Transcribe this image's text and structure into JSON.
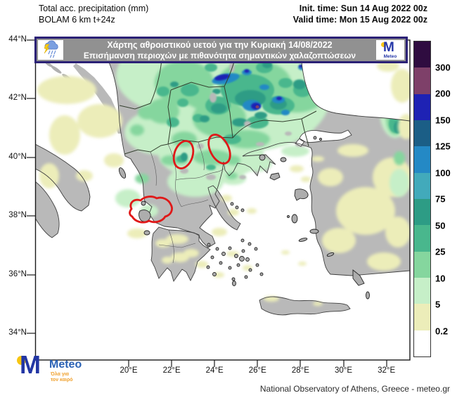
{
  "header": {
    "product_line1": "Total acc. precipitation (mm)",
    "product_line2": "BOLAM 6 km t+24z",
    "init_time": "Init. time: Sun 14 Aug 2022 00z",
    "valid_time": "Valid time: Mon 15 Aug 2022 00z"
  },
  "banner": {
    "title": "Χάρτης αθροιστικού υετού για την Κυριακή 14/08/2022",
    "subtitle": "Επισήμανση περιοχών με πιθανότητα σημαντικών χαλαζοπτώσεων",
    "bg_color": "#919191",
    "border_color": "#2b2176",
    "logo_text": "Meteo"
  },
  "axes": {
    "lat_labels": [
      "44°N",
      "42°N",
      "40°N",
      "38°N",
      "36°N",
      "34°N"
    ],
    "lon_labels": [
      "20°E",
      "22°E",
      "24°E",
      "26°E",
      "28°E",
      "30°E",
      "32°E"
    ]
  },
  "colorbar": {
    "unit": "mm",
    "labels_top_to_bottom": [
      "300",
      "200",
      "150",
      "125",
      "100",
      "75",
      "50",
      "25",
      "10",
      "5",
      "0.2"
    ],
    "colors_top_to_bottom": [
      "#2f0c40",
      "#7e4069",
      "#1e22b4",
      "#1b5e86",
      "#2489c5",
      "#42aabb",
      "#2d9c85",
      "#49b78d",
      "#85d69e",
      "#c6efc8",
      "#ecedb9",
      "#ffffff"
    ]
  },
  "map_colors": {
    "land": "#b9b9b9",
    "sea": "#ffffff",
    "highlight": "#e01818"
  },
  "footer": {
    "logo_text": "Meteo",
    "logo_tagline_line1": "Όλα για",
    "logo_tagline_line2": "τον καιρό",
    "attribution": "National Observatory of Athens, Greece - meteo.gr"
  }
}
